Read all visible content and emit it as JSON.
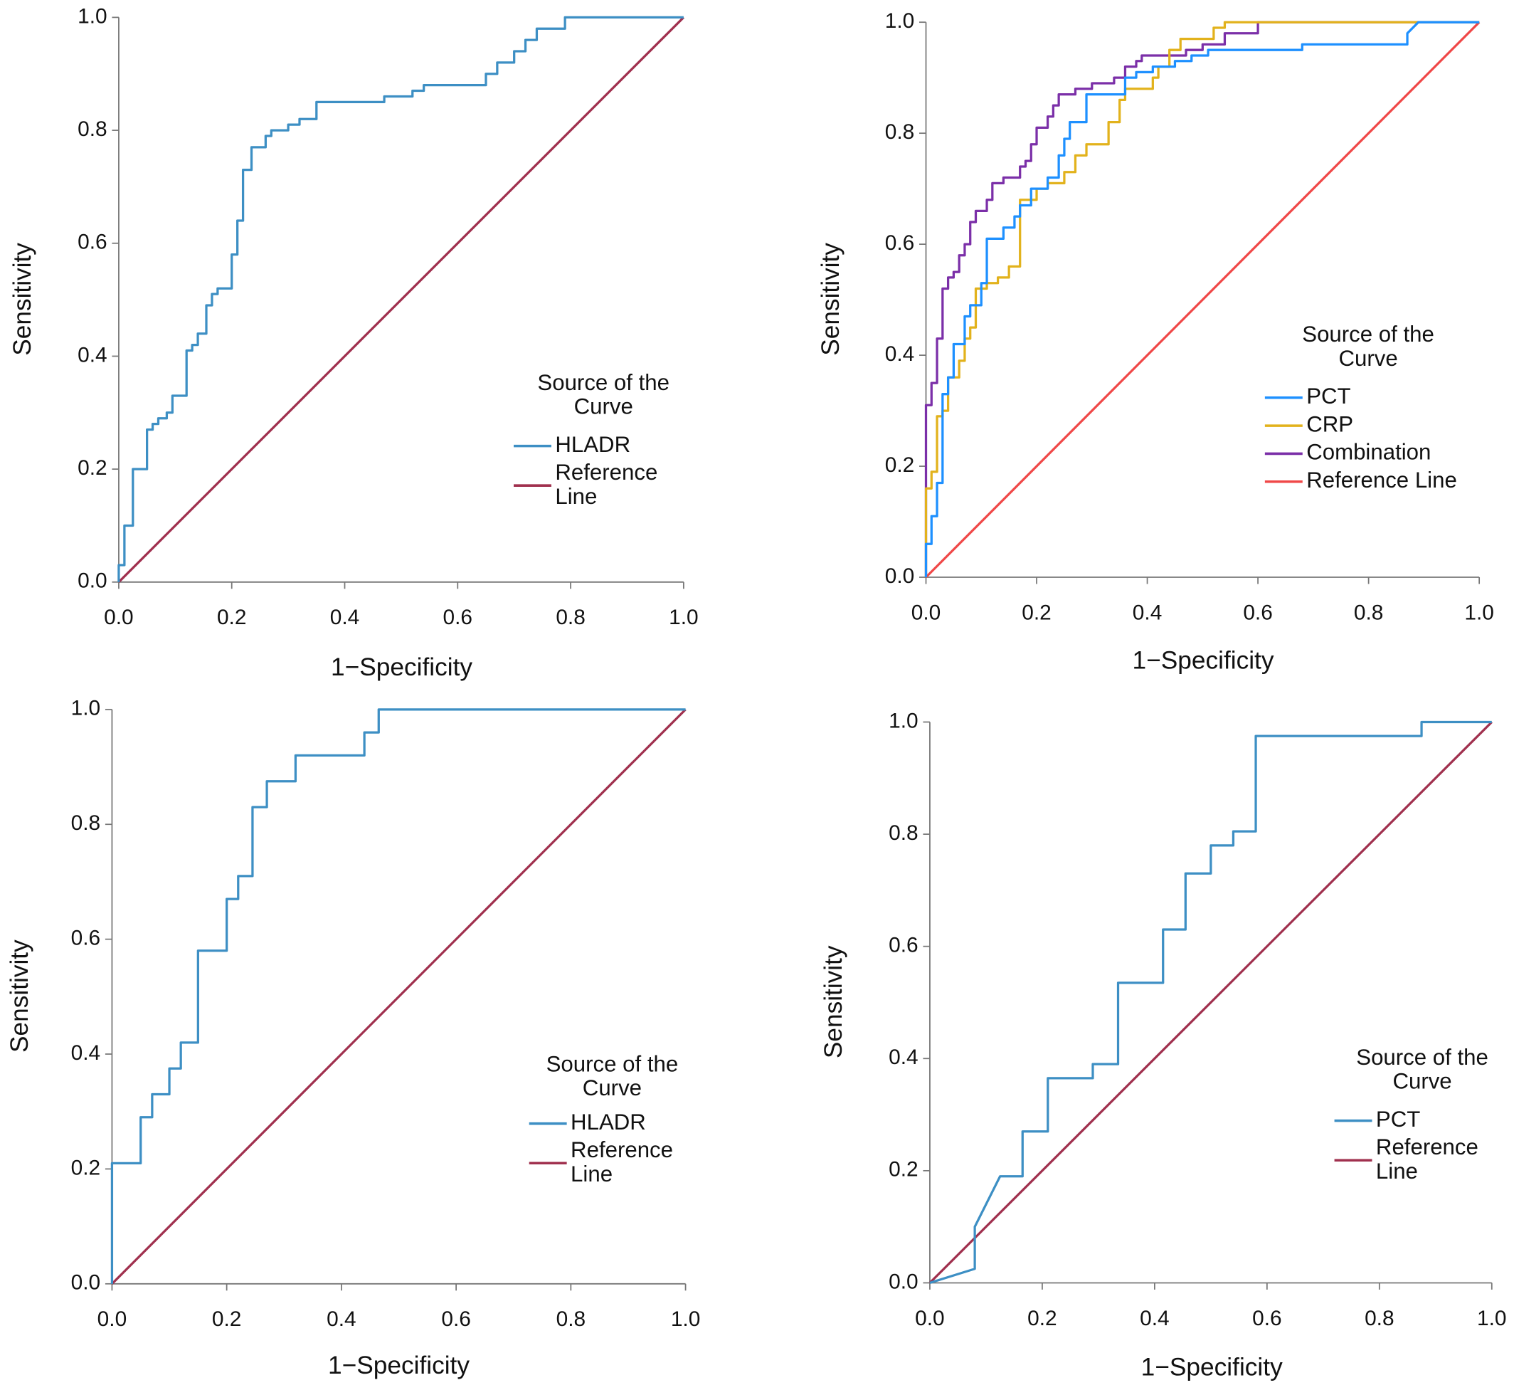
{
  "chart_data": [
    {
      "type": "line",
      "xlabel": "1−Specificity",
      "ylabel": "Sensitivity",
      "legend_title": "Source of the Curve",
      "xlim": [
        0,
        1
      ],
      "ylim": [
        0,
        1
      ],
      "xticks": [
        {
          "value": 0,
          "label": "0.0"
        },
        0.2,
        0.4,
        0.6,
        0.8,
        {
          "value": 1,
          "label": "1.0"
        }
      ],
      "yticks": [
        {
          "value": 0,
          "label": "0.0"
        },
        0.2,
        0.4,
        0.6,
        0.8,
        {
          "value": 1,
          "label": "1.0"
        }
      ],
      "series": [
        {
          "name": "HLADR",
          "color": "#3d8fc4",
          "x": [
            0,
            0,
            0.01,
            0.01,
            0.025,
            0.025,
            0.05,
            0.05,
            0.06,
            0.06,
            0.07,
            0.07,
            0.085,
            0.085,
            0.095,
            0.095,
            0.12,
            0.12,
            0.13,
            0.13,
            0.14,
            0.14,
            0.155,
            0.155,
            0.165,
            0.165,
            0.175,
            0.175,
            0.2,
            0.2,
            0.21,
            0.21,
            0.22,
            0.22,
            0.235,
            0.235,
            0.26,
            0.26,
            0.27,
            0.27,
            0.3,
            0.3,
            0.32,
            0.32,
            0.35,
            0.35,
            0.47,
            0.47,
            0.52,
            0.52,
            0.54,
            0.54,
            0.65,
            0.65,
            0.67,
            0.67,
            0.7,
            0.7,
            0.72,
            0.72,
            0.74,
            0.74,
            0.79,
            0.79,
            1
          ],
          "values": [
            0,
            0.03,
            0.03,
            0.1,
            0.1,
            0.2,
            0.2,
            0.27,
            0.27,
            0.28,
            0.28,
            0.29,
            0.29,
            0.3,
            0.3,
            0.33,
            0.33,
            0.41,
            0.41,
            0.42,
            0.42,
            0.44,
            0.44,
            0.49,
            0.49,
            0.51,
            0.51,
            0.52,
            0.52,
            0.58,
            0.58,
            0.64,
            0.64,
            0.73,
            0.73,
            0.77,
            0.77,
            0.79,
            0.79,
            0.8,
            0.8,
            0.81,
            0.81,
            0.82,
            0.82,
            0.85,
            0.85,
            0.86,
            0.86,
            0.87,
            0.87,
            0.88,
            0.88,
            0.9,
            0.9,
            0.92,
            0.92,
            0.94,
            0.94,
            0.96,
            0.96,
            0.98,
            0.98,
            1,
            1
          ]
        },
        {
          "name": "Reference Line",
          "color": "#a0304e",
          "x": [
            0,
            1
          ],
          "values": [
            0,
            1
          ]
        }
      ]
    },
    {
      "type": "line",
      "xlabel": "1−Specificity",
      "ylabel": "Sensitivity",
      "legend_title": "Source of the Curve",
      "xlim": [
        0,
        1
      ],
      "ylim": [
        0,
        1
      ],
      "xticks": [
        {
          "value": 0,
          "label": "0.0"
        },
        0.2,
        0.4,
        0.6,
        0.8,
        {
          "value": 1,
          "label": "1.0"
        }
      ],
      "yticks": [
        {
          "value": 0,
          "label": "0.0"
        },
        0.2,
        0.4,
        0.6,
        0.8,
        {
          "value": 1,
          "label": "1.0"
        }
      ],
      "series": [
        {
          "name": "PCT",
          "color": "#1e90ff",
          "x": [
            0,
            0,
            0.01,
            0.01,
            0.02,
            0.02,
            0.03,
            0.03,
            0.04,
            0.04,
            0.05,
            0.05,
            0.07,
            0.07,
            0.08,
            0.08,
            0.1,
            0.1,
            0.11,
            0.11,
            0.14,
            0.14,
            0.16,
            0.16,
            0.17,
            0.17,
            0.19,
            0.19,
            0.22,
            0.22,
            0.24,
            0.24,
            0.25,
            0.25,
            0.26,
            0.26,
            0.29,
            0.29,
            0.36,
            0.36,
            0.38,
            0.38,
            0.41,
            0.41,
            0.45,
            0.45,
            0.48,
            0.48,
            0.51,
            0.51,
            0.68,
            0.68,
            0.87,
            0.87,
            0.89,
            1
          ],
          "values": [
            0,
            0.06,
            0.06,
            0.11,
            0.11,
            0.17,
            0.17,
            0.33,
            0.33,
            0.36,
            0.36,
            0.42,
            0.42,
            0.47,
            0.47,
            0.49,
            0.49,
            0.53,
            0.53,
            0.61,
            0.61,
            0.63,
            0.63,
            0.65,
            0.65,
            0.67,
            0.67,
            0.7,
            0.7,
            0.72,
            0.72,
            0.76,
            0.76,
            0.79,
            0.79,
            0.82,
            0.82,
            0.87,
            0.87,
            0.9,
            0.9,
            0.91,
            0.91,
            0.92,
            0.92,
            0.93,
            0.93,
            0.94,
            0.94,
            0.95,
            0.95,
            0.96,
            0.96,
            0.98,
            1,
            1
          ]
        },
        {
          "name": "CRP",
          "color": "#e2b21c",
          "x": [
            0,
            0,
            0.01,
            0.01,
            0.02,
            0.02,
            0.03,
            0.03,
            0.04,
            0.04,
            0.06,
            0.06,
            0.07,
            0.07,
            0.08,
            0.08,
            0.09,
            0.09,
            0.11,
            0.11,
            0.13,
            0.13,
            0.15,
            0.15,
            0.17,
            0.17,
            0.2,
            0.2,
            0.22,
            0.22,
            0.25,
            0.25,
            0.27,
            0.27,
            0.29,
            0.29,
            0.33,
            0.33,
            0.35,
            0.35,
            0.36,
            0.36,
            0.41,
            0.41,
            0.42,
            0.42,
            0.44,
            0.44,
            0.46,
            0.46,
            0.52,
            0.52,
            0.54,
            0.54,
            1
          ],
          "values": [
            0,
            0.16,
            0.16,
            0.19,
            0.19,
            0.29,
            0.29,
            0.3,
            0.3,
            0.36,
            0.36,
            0.39,
            0.39,
            0.43,
            0.43,
            0.45,
            0.45,
            0.52,
            0.52,
            0.53,
            0.53,
            0.54,
            0.54,
            0.56,
            0.56,
            0.68,
            0.68,
            0.7,
            0.7,
            0.71,
            0.71,
            0.73,
            0.73,
            0.76,
            0.76,
            0.78,
            0.78,
            0.82,
            0.82,
            0.86,
            0.86,
            0.88,
            0.88,
            0.9,
            0.9,
            0.92,
            0.92,
            0.95,
            0.95,
            0.97,
            0.97,
            0.99,
            0.99,
            1,
            1
          ]
        },
        {
          "name": "Combination",
          "color": "#7b2fa8",
          "x": [
            0,
            0,
            0.01,
            0.01,
            0.02,
            0.02,
            0.03,
            0.03,
            0.04,
            0.04,
            0.05,
            0.05,
            0.06,
            0.06,
            0.07,
            0.07,
            0.08,
            0.08,
            0.09,
            0.09,
            0.11,
            0.11,
            0.12,
            0.12,
            0.14,
            0.14,
            0.17,
            0.17,
            0.18,
            0.18,
            0.19,
            0.19,
            0.2,
            0.2,
            0.22,
            0.22,
            0.23,
            0.23,
            0.24,
            0.24,
            0.27,
            0.27,
            0.3,
            0.3,
            0.34,
            0.34,
            0.36,
            0.36,
            0.38,
            0.38,
            0.39,
            0.39,
            0.47,
            0.47,
            0.5,
            0.5,
            0.54,
            0.54,
            0.6,
            0.6,
            1
          ],
          "values": [
            0,
            0.31,
            0.31,
            0.35,
            0.35,
            0.43,
            0.43,
            0.52,
            0.52,
            0.54,
            0.54,
            0.55,
            0.55,
            0.58,
            0.58,
            0.6,
            0.6,
            0.64,
            0.64,
            0.66,
            0.66,
            0.68,
            0.68,
            0.71,
            0.71,
            0.72,
            0.72,
            0.74,
            0.74,
            0.75,
            0.75,
            0.78,
            0.78,
            0.81,
            0.81,
            0.83,
            0.83,
            0.85,
            0.85,
            0.87,
            0.87,
            0.88,
            0.88,
            0.89,
            0.89,
            0.9,
            0.9,
            0.92,
            0.92,
            0.93,
            0.93,
            0.94,
            0.94,
            0.95,
            0.95,
            0.96,
            0.96,
            0.98,
            0.98,
            1,
            1
          ]
        },
        {
          "name": "Reference Line",
          "color": "#f04848",
          "x": [
            0,
            1
          ],
          "values": [
            0,
            1
          ]
        }
      ]
    },
    {
      "type": "line",
      "xlabel": "1−Specificity",
      "ylabel": "Sensitivity",
      "legend_title": "Source of the Curve",
      "xlim": [
        0,
        1
      ],
      "ylim": [
        0,
        1
      ],
      "xticks": [
        {
          "value": 0,
          "label": "0.0"
        },
        0.2,
        0.4,
        0.6,
        0.8,
        {
          "value": 1,
          "label": "1.0"
        }
      ],
      "yticks": [
        {
          "value": 0,
          "label": "0.0"
        },
        0.2,
        0.4,
        0.6,
        0.8,
        {
          "value": 1,
          "label": "1.0"
        }
      ],
      "series": [
        {
          "name": "HLADR",
          "color": "#3d8fc4",
          "x": [
            0,
            0,
            0.05,
            0.05,
            0.07,
            0.07,
            0.1,
            0.1,
            0.12,
            0.12,
            0.15,
            0.15,
            0.2,
            0.2,
            0.22,
            0.22,
            0.245,
            0.245,
            0.27,
            0.27,
            0.32,
            0.32,
            0.44,
            0.44,
            0.465,
            0.465,
            1
          ],
          "values": [
            0,
            0.21,
            0.21,
            0.29,
            0.29,
            0.33,
            0.33,
            0.375,
            0.375,
            0.42,
            0.42,
            0.58,
            0.58,
            0.67,
            0.67,
            0.71,
            0.71,
            0.83,
            0.83,
            0.875,
            0.875,
            0.92,
            0.92,
            0.96,
            0.96,
            1,
            1
          ]
        },
        {
          "name": "Reference Line",
          "color": "#a0304e",
          "x": [
            0,
            1
          ],
          "values": [
            0,
            1
          ]
        }
      ]
    },
    {
      "type": "line",
      "xlabel": "1−Specificity",
      "ylabel": "Sensitivity",
      "legend_title": "Source of the Curve",
      "xlim": [
        0,
        1
      ],
      "ylim": [
        0,
        1
      ],
      "xticks": [
        {
          "value": 0,
          "label": "0.0"
        },
        0.2,
        0.4,
        0.6,
        0.8,
        {
          "value": 1,
          "label": "1.0"
        }
      ],
      "yticks": [
        {
          "value": 0,
          "label": "0.0"
        },
        0.2,
        0.4,
        0.6,
        0.8,
        {
          "value": 1,
          "label": "1.0"
        }
      ],
      "series": [
        {
          "name": "PCT",
          "color": "#3d8fc4",
          "x": [
            0,
            0.08,
            0.08,
            0.125,
            0.165,
            0.165,
            0.21,
            0.21,
            0.29,
            0.29,
            0.335,
            0.335,
            0.415,
            0.415,
            0.455,
            0.455,
            0.5,
            0.5,
            0.54,
            0.54,
            0.58,
            0.58,
            0.875,
            0.875,
            1
          ],
          "values": [
            0,
            0.025,
            0.1,
            0.19,
            0.19,
            0.27,
            0.27,
            0.365,
            0.365,
            0.39,
            0.39,
            0.535,
            0.535,
            0.63,
            0.63,
            0.73,
            0.73,
            0.78,
            0.78,
            0.805,
            0.805,
            0.975,
            0.975,
            1,
            1
          ]
        },
        {
          "name": "Reference Line",
          "color": "#a0304e",
          "x": [
            0,
            1
          ],
          "values": [
            0,
            1
          ]
        }
      ]
    }
  ]
}
